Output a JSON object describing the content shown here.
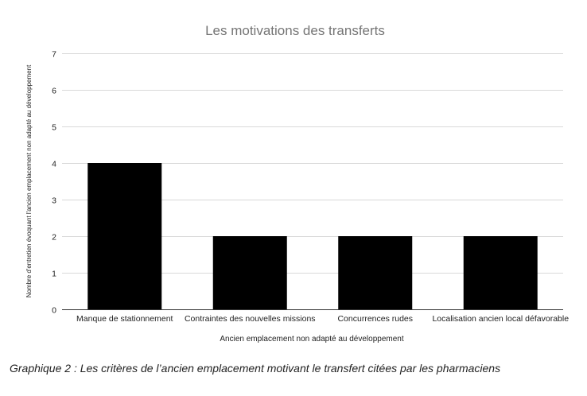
{
  "chart_data": {
    "type": "bar",
    "title": "Les motivations des transferts",
    "xlabel": "Ancien emplacement non adapté au développement",
    "ylabel": "Nombre d'entretien évoquant l'ancien emplacement non adapté au développement",
    "categories": [
      "Manque de stationnement",
      "Contraintes des nouvelles missions",
      "Concurrences rudes",
      "Localisation ancien local défavorable"
    ],
    "values": [
      4,
      2,
      2,
      2
    ],
    "ylim": [
      0,
      7
    ],
    "yticks": [
      0,
      1,
      2,
      3,
      4,
      5,
      6,
      7
    ],
    "grid": true,
    "legend": "none",
    "bar_color": "#000000"
  },
  "caption": "Graphique 2 : Les critères de l’ancien emplacement motivant le transfert citées par les pharmaciens"
}
